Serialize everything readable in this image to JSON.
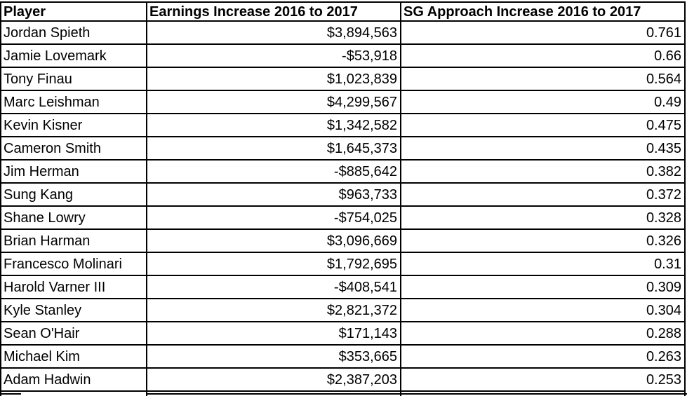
{
  "colors": {
    "border": "#000000",
    "text": "#000000",
    "background": "#ffffff"
  },
  "table": {
    "header": {
      "player": "Player",
      "earnings": "Earnings Increase 2016 to 2017",
      "sg": "SG Approach Increase 2016 to 2017"
    },
    "rows": [
      {
        "player": "Jordan Spieth",
        "earnings": "$3,894,563",
        "sg": "0.761"
      },
      {
        "player": "Jamie Lovemark",
        "earnings": "-$53,918",
        "sg": "0.66"
      },
      {
        "player": "Tony Finau",
        "earnings": "$1,023,839",
        "sg": "0.564"
      },
      {
        "player": "Marc Leishman",
        "earnings": "$4,299,567",
        "sg": "0.49"
      },
      {
        "player": "Kevin Kisner",
        "earnings": "$1,342,582",
        "sg": "0.475"
      },
      {
        "player": "Cameron Smith",
        "earnings": "$1,645,373",
        "sg": "0.435"
      },
      {
        "player": "Jim Herman",
        "earnings": "-$885,642",
        "sg": "0.382"
      },
      {
        "player": "Sung Kang",
        "earnings": "$963,733",
        "sg": "0.372"
      },
      {
        "player": "Shane Lowry",
        "earnings": "-$754,025",
        "sg": "0.328"
      },
      {
        "player": "Brian Harman",
        "earnings": "$3,096,669",
        "sg": "0.326"
      },
      {
        "player": "Francesco Molinari",
        "earnings": "$1,792,695",
        "sg": "0.31"
      },
      {
        "player": "Harold Varner III",
        "earnings": "-$408,541",
        "sg": "0.309"
      },
      {
        "player": "Kyle Stanley",
        "earnings": "$2,821,372",
        "sg": "0.304"
      },
      {
        "player": "Sean O'Hair",
        "earnings": "$171,143",
        "sg": "0.288"
      },
      {
        "player": "Michael Kim",
        "earnings": "$353,665",
        "sg": "0.263"
      },
      {
        "player": "Adam Hadwin",
        "earnings": "$2,387,203",
        "sg": "0.253"
      }
    ]
  },
  "chart_data": {
    "type": "table",
    "title": "",
    "columns": [
      "Player",
      "Earnings Increase 2016 to 2017",
      "SG Approach Increase 2016 to 2017"
    ],
    "rows": [
      [
        "Jordan Spieth",
        3894563,
        0.761
      ],
      [
        "Jamie Lovemark",
        -53918,
        0.66
      ],
      [
        "Tony Finau",
        1023839,
        0.564
      ],
      [
        "Marc Leishman",
        4299567,
        0.49
      ],
      [
        "Kevin Kisner",
        1342582,
        0.475
      ],
      [
        "Cameron Smith",
        1645373,
        0.435
      ],
      [
        "Jim Herman",
        -885642,
        0.382
      ],
      [
        "Sung Kang",
        963733,
        0.372
      ],
      [
        "Shane Lowry",
        -754025,
        0.328
      ],
      [
        "Brian Harman",
        3096669,
        0.326
      ],
      [
        "Francesco Molinari",
        1792695,
        0.31
      ],
      [
        "Harold Varner III",
        -408541,
        0.309
      ],
      [
        "Kyle Stanley",
        2821372,
        0.304
      ],
      [
        "Sean O'Hair",
        171143,
        0.288
      ],
      [
        "Michael Kim",
        353665,
        0.263
      ],
      [
        "Adam Hadwin",
        2387203,
        0.253
      ]
    ]
  }
}
